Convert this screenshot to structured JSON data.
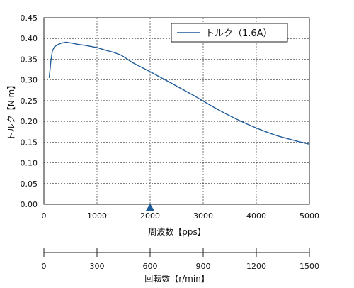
{
  "chart_data": {
    "type": "line",
    "ylabel": "トルク【N·m】",
    "xlabel": "周波数【pps】",
    "secondary_xlabel": "回転数【r/min】",
    "xlim": [
      0,
      5000
    ],
    "ylim": [
      0,
      0.45
    ],
    "x_ticks": [
      "0",
      "1000",
      "2000",
      "3000",
      "4000",
      "5000"
    ],
    "y_ticks": [
      "0.00",
      "0.05",
      "0.10",
      "0.15",
      "0.20",
      "0.25",
      "0.30",
      "0.35",
      "0.40",
      "0.45"
    ],
    "secondary_x_ticks": [
      "0",
      "300",
      "600",
      "900",
      "1200",
      "1500"
    ],
    "secondary_x_range": [
      0,
      1500
    ],
    "grid": true,
    "legend_position": "top-right",
    "marker": {
      "x": 2000,
      "color": "#1f5c99"
    },
    "series": [
      {
        "name": "トルク（1.6A）",
        "color": "#1f5c99",
        "x": [
          100,
          130,
          160,
          200,
          260,
          330,
          420,
          520,
          640,
          800,
          1000,
          1150,
          1300,
          1450,
          1550,
          1650,
          1800,
          2000,
          2200,
          2400,
          2600,
          2800,
          3000,
          3200,
          3400,
          3600,
          3800,
          4000,
          4200,
          4400,
          4600,
          4800,
          5000
        ],
        "y": [
          0.305,
          0.345,
          0.37,
          0.38,
          0.385,
          0.389,
          0.391,
          0.389,
          0.386,
          0.383,
          0.378,
          0.372,
          0.367,
          0.36,
          0.352,
          0.343,
          0.333,
          0.32,
          0.306,
          0.292,
          0.278,
          0.264,
          0.249,
          0.234,
          0.22,
          0.207,
          0.195,
          0.184,
          0.174,
          0.165,
          0.158,
          0.151,
          0.145
        ]
      }
    ]
  }
}
